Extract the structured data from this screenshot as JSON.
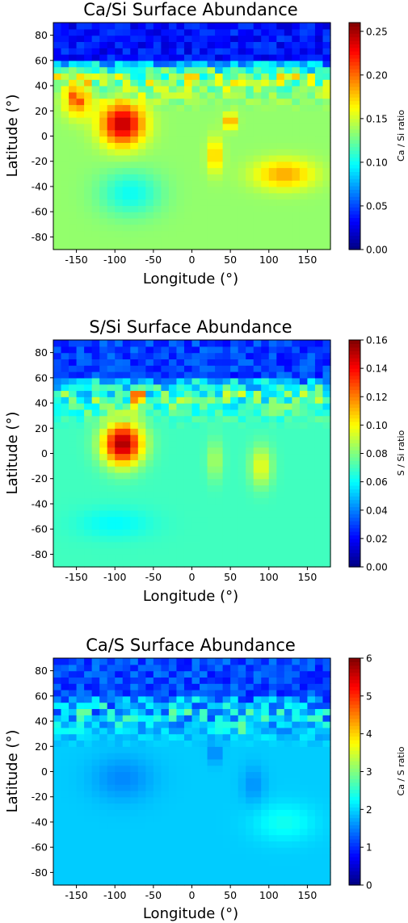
{
  "chart_data": [
    {
      "type": "heatmap",
      "title": "Ca/Si Surface Abundance",
      "xlabel": "Longitude (°)",
      "ylabel": "Latitude (°)",
      "colorbar_label": "Ca / Si ratio",
      "colormap": "jet",
      "xlim": [
        -180,
        180
      ],
      "ylim": [
        -90,
        90
      ],
      "clim": [
        0,
        0.26
      ],
      "xticks": [
        "-150",
        "-100",
        "-50",
        "0",
        "50",
        "100",
        "150"
      ],
      "xtick_values": [
        -150,
        -100,
        -50,
        0,
        50,
        100,
        150
      ],
      "yticks": [
        "80",
        "60",
        "40",
        "20",
        "0",
        "-20",
        "-40",
        "-60",
        "-80"
      ],
      "ytick_values": [
        80,
        60,
        40,
        20,
        0,
        -20,
        -40,
        -60,
        -80
      ],
      "cbticks": [
        "0.25",
        "0.20",
        "0.15",
        "0.10",
        "0.05",
        "0.00"
      ],
      "cbtick_values": [
        0.25,
        0.2,
        0.15,
        0.1,
        0.05,
        0.0
      ],
      "field": {
        "polar_north": 0.02,
        "background": 0.135,
        "hotspots": [
          {
            "lon": -90,
            "lat": 10,
            "peak": 0.245,
            "rlon": 28,
            "rlat": 17
          },
          {
            "lon": -148,
            "lat": 30,
            "peak": 0.2,
            "rlon": 18,
            "rlat": 14
          },
          {
            "lon": 120,
            "lat": -30,
            "peak": 0.185,
            "rlon": 40,
            "rlat": 12
          },
          {
            "lon": 30,
            "lat": -15,
            "peak": 0.18,
            "rlon": 10,
            "rlat": 14
          },
          {
            "lon": 50,
            "lat": 12,
            "peak": 0.2,
            "rlon": 8,
            "rlat": 6
          },
          {
            "lon": -80,
            "lat": -45,
            "peak": 0.1,
            "rlon": 40,
            "rlat": 18
          }
        ]
      }
    },
    {
      "type": "heatmap",
      "title": "S/Si Surface Abundance",
      "xlabel": "Longitude (°)",
      "ylabel": "Latitude (°)",
      "colorbar_label": "S / Si ratio",
      "colormap": "jet",
      "xlim": [
        -180,
        180
      ],
      "ylim": [
        -90,
        90
      ],
      "clim": [
        0,
        0.16
      ],
      "xticks": [
        "-150",
        "-100",
        "-50",
        "0",
        "50",
        "100",
        "150"
      ],
      "xtick_values": [
        -150,
        -100,
        -50,
        0,
        50,
        100,
        150
      ],
      "yticks": [
        "80",
        "60",
        "40",
        "20",
        "0",
        "-20",
        "-40",
        "-60",
        "-80"
      ],
      "ytick_values": [
        80,
        60,
        40,
        20,
        0,
        -20,
        -40,
        -60,
        -80
      ],
      "cbticks": [
        "0.16",
        "0.14",
        "0.12",
        "0.10",
        "0.08",
        "0.06",
        "0.04",
        "0.02",
        "0.00"
      ],
      "cbtick_values": [
        0.16,
        0.14,
        0.12,
        0.1,
        0.08,
        0.06,
        0.04,
        0.02,
        0.0
      ],
      "field": {
        "polar_north": 0.02,
        "background": 0.07,
        "hotspots": [
          {
            "lon": -90,
            "lat": 8,
            "peak": 0.155,
            "rlon": 26,
            "rlat": 17
          },
          {
            "lon": -70,
            "lat": 45,
            "peak": 0.115,
            "rlon": 8,
            "rlat": 8
          },
          {
            "lon": 90,
            "lat": -10,
            "peak": 0.098,
            "rlon": 14,
            "rlat": 16
          },
          {
            "lon": 30,
            "lat": -5,
            "peak": 0.088,
            "rlon": 10,
            "rlat": 16
          },
          {
            "lon": -100,
            "lat": -55,
            "peak": 0.06,
            "rlon": 50,
            "rlat": 12
          }
        ]
      }
    },
    {
      "type": "heatmap",
      "title": "Ca/S Surface Abundance",
      "xlabel": "Longitude (°)",
      "ylabel": "Latitude (°)",
      "colorbar_label": "Ca / S ratio",
      "colormap": "jet",
      "xlim": [
        -180,
        180
      ],
      "ylim": [
        -90,
        90
      ],
      "clim": [
        0,
        6
      ],
      "xticks": [
        "-150",
        "-100",
        "-50",
        "0",
        "50",
        "100",
        "150"
      ],
      "xtick_values": [
        -150,
        -100,
        -50,
        0,
        50,
        100,
        150
      ],
      "yticks": [
        "80",
        "60",
        "40",
        "20",
        "0",
        "-20",
        "-40",
        "-60",
        "-80"
      ],
      "ytick_values": [
        80,
        60,
        40,
        20,
        0,
        -20,
        -40,
        -60,
        -80
      ],
      "cbticks": [
        "6",
        "5",
        "4",
        "3",
        "2",
        "1",
        "0"
      ],
      "cbtick_values": [
        6,
        5,
        4,
        3,
        2,
        1,
        0
      ],
      "field": {
        "polar_north": 0.8,
        "background": 1.95,
        "hotspots": [
          {
            "lon": 68,
            "lat": 35,
            "peak": 4.3,
            "rlon": 3,
            "rlat": 4
          },
          {
            "lon": -90,
            "lat": -5,
            "peak": 1.55,
            "rlon": 40,
            "rlat": 18
          },
          {
            "lon": 80,
            "lat": -10,
            "peak": 1.6,
            "rlon": 15,
            "rlat": 15
          },
          {
            "lon": 30,
            "lat": 15,
            "peak": 1.4,
            "rlon": 8,
            "rlat": 8
          },
          {
            "lon": 120,
            "lat": -40,
            "peak": 2.35,
            "rlon": 40,
            "rlat": 15
          }
        ]
      }
    }
  ]
}
